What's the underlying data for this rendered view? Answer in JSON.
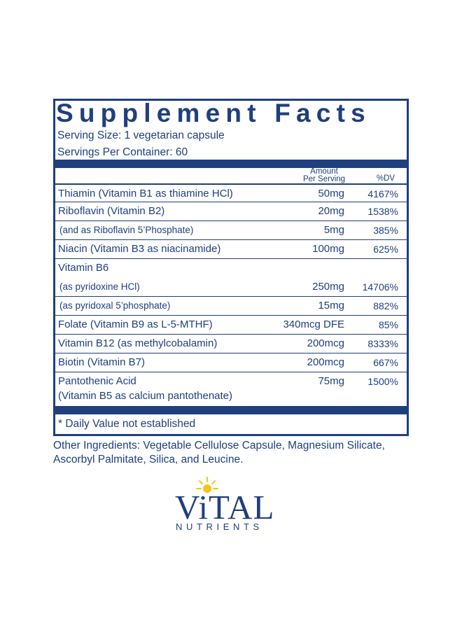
{
  "panel": {
    "title": "Supplement Facts",
    "serving_size": "Serving Size: 1 vegetarian capsule",
    "servings_per_container": "Servings Per Container: 60",
    "col_amount_line1": "Amount",
    "col_amount_line2": "Per Serving",
    "col_dv": "%DV",
    "rows": [
      {
        "name": "Thiamin (Vitamin B1 as thiamine HCl)",
        "amount": "50mg",
        "dv": "4167%"
      },
      {
        "name": "Riboflavin (Vitamin B2)",
        "amount": "20mg",
        "dv": "1538%"
      },
      {
        "name": "(and as Riboflavin 5’Phosphate)",
        "amount": "5mg",
        "dv": "385%"
      },
      {
        "name": "Niacin (Vitamin B3 as niacinamide)",
        "amount": "100mg",
        "dv": "625%"
      },
      {
        "name": "Vitamin B6",
        "amount": "",
        "dv": ""
      },
      {
        "name": "(as pyridoxine HCl)",
        "amount": "250mg",
        "dv": "14706%"
      },
      {
        "name": "(as pyridoxal 5’phosphate)",
        "amount": "15mg",
        "dv": "882%"
      },
      {
        "name": "Folate (Vitamin B9 as L-5-MTHF)",
        "amount": "340mcg DFE",
        "dv": "85%"
      },
      {
        "name": "Vitamin B12 (as methylcobalamin)",
        "amount": "200mcg",
        "dv": "8333%"
      },
      {
        "name": "Biotin (Vitamin B7)",
        "amount": "200mcg",
        "dv": "667%"
      },
      {
        "name": "Pantothenic Acid",
        "name_line2": "(Vitamin B5 as calcium pantothenate)",
        "amount": "75mg",
        "dv": "1500%"
      }
    ],
    "footnote": "* Daily Value not established"
  },
  "other_ingredients": "Other Ingredients: Vegetable Cellulose Capsule, Magnesium Silicate, Ascorbyl Palmitate, Silica, and Leucine.",
  "logo": {
    "word": "ViTAL",
    "sub": "NUTRIENTS",
    "sun_icon": "sun-icon",
    "sun_color": "#f5c518",
    "brand_color": "#1f3f7e"
  }
}
